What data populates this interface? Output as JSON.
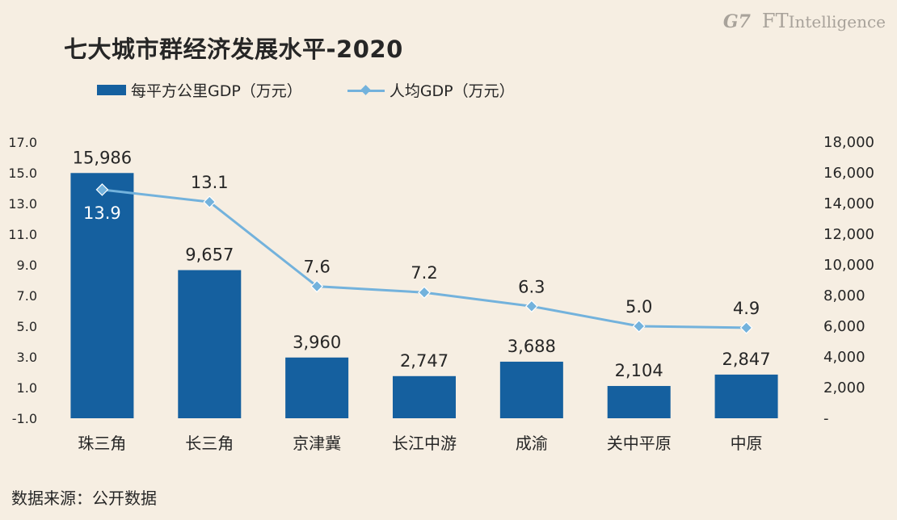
{
  "title": "七大城市群经济发展水平-2020",
  "logo": {
    "g7": "G7",
    "brand_ft": "FT",
    "brand_rest": "Intelligence"
  },
  "source": "数据来源：公开数据",
  "chart_data": {
    "type": "bar",
    "title": "七大城市群经济发展水平-2020",
    "categories": [
      "珠三角",
      "长三角",
      "京津冀",
      "长江中游",
      "成渝",
      "关中平原",
      "中原"
    ],
    "series": [
      {
        "name": "每平方公里GDP（万元）",
        "type": "bar",
        "axis": "right",
        "color": "#15609f",
        "values": [
          15986,
          9657,
          3960,
          2747,
          3688,
          2104,
          2847
        ],
        "labels": [
          "15,986",
          "9,657",
          "3,960",
          "2,747",
          "3,688",
          "2,104",
          "2,847"
        ]
      },
      {
        "name": "人均GDP（万元）",
        "type": "line",
        "axis": "left",
        "color": "#73b2dc",
        "marker": "diamond",
        "values": [
          13.9,
          13.1,
          7.6,
          7.2,
          6.3,
          5.0,
          4.9
        ],
        "labels": [
          "13.9",
          "13.1",
          "7.6",
          "7.2",
          "6.3",
          "5.0",
          "4.9"
        ]
      }
    ],
    "y_left": {
      "ylim": [
        -1.0,
        17.0
      ],
      "ticks": [
        -1.0,
        1.0,
        3.0,
        5.0,
        7.0,
        9.0,
        11.0,
        13.0,
        15.0,
        17.0
      ],
      "tick_labels": [
        "-1.0",
        "1.0",
        "3.0",
        "5.0",
        "7.0",
        "9.0",
        "11.0",
        "13.0",
        "15.0",
        "17.0"
      ]
    },
    "y_right": {
      "ylim": [
        0,
        18000
      ],
      "ticks": [
        0,
        2000,
        4000,
        6000,
        8000,
        10000,
        12000,
        14000,
        16000,
        18000
      ],
      "tick_labels": [
        "-",
        "2,000",
        "4,000",
        "6,000",
        "8,000",
        "10,000",
        "12,000",
        "14,000",
        "16,000",
        "18,000"
      ]
    },
    "grid": false,
    "legend": "top-left"
  }
}
